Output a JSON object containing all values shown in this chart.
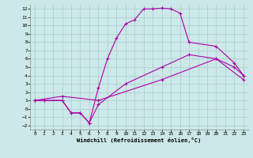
{
  "xlabel": "Windchill (Refroidissement éolien,°C)",
  "ylabel": "",
  "xlim": [
    -0.5,
    23.5
  ],
  "ylim": [
    -2.5,
    12.5
  ],
  "xticks": [
    0,
    1,
    2,
    3,
    4,
    5,
    6,
    7,
    8,
    9,
    10,
    11,
    12,
    13,
    14,
    15,
    16,
    17,
    18,
    19,
    20,
    21,
    22,
    23
  ],
  "yticks": [
    -2,
    -1,
    0,
    1,
    2,
    3,
    4,
    5,
    6,
    7,
    8,
    9,
    10,
    11,
    12
  ],
  "background_color": "#cce8e8",
  "grid_color": "#aacccc",
  "line_color": "#aa00aa",
  "line1_x": [
    0,
    1,
    3,
    4,
    5,
    6,
    7,
    8,
    9,
    10,
    11,
    12,
    13,
    14,
    15,
    16,
    17,
    20,
    22,
    23
  ],
  "line1_y": [
    1,
    1,
    1,
    -0.5,
    -0.5,
    -1.7,
    2.5,
    6,
    8.5,
    10.2,
    10.7,
    12,
    12,
    12.1,
    12,
    11.5,
    8,
    7.5,
    5.5,
    4
  ],
  "line2_x": [
    0,
    1,
    3,
    4,
    5,
    6,
    7,
    10,
    14,
    17,
    20,
    22,
    23
  ],
  "line2_y": [
    1,
    1,
    1,
    -0.5,
    -0.5,
    -1.7,
    0.5,
    3,
    5,
    6.5,
    6,
    5,
    4
  ],
  "line3_x": [
    0,
    3,
    7,
    14,
    20,
    23
  ],
  "line3_y": [
    1,
    1.5,
    1,
    3.5,
    6,
    3.5
  ]
}
